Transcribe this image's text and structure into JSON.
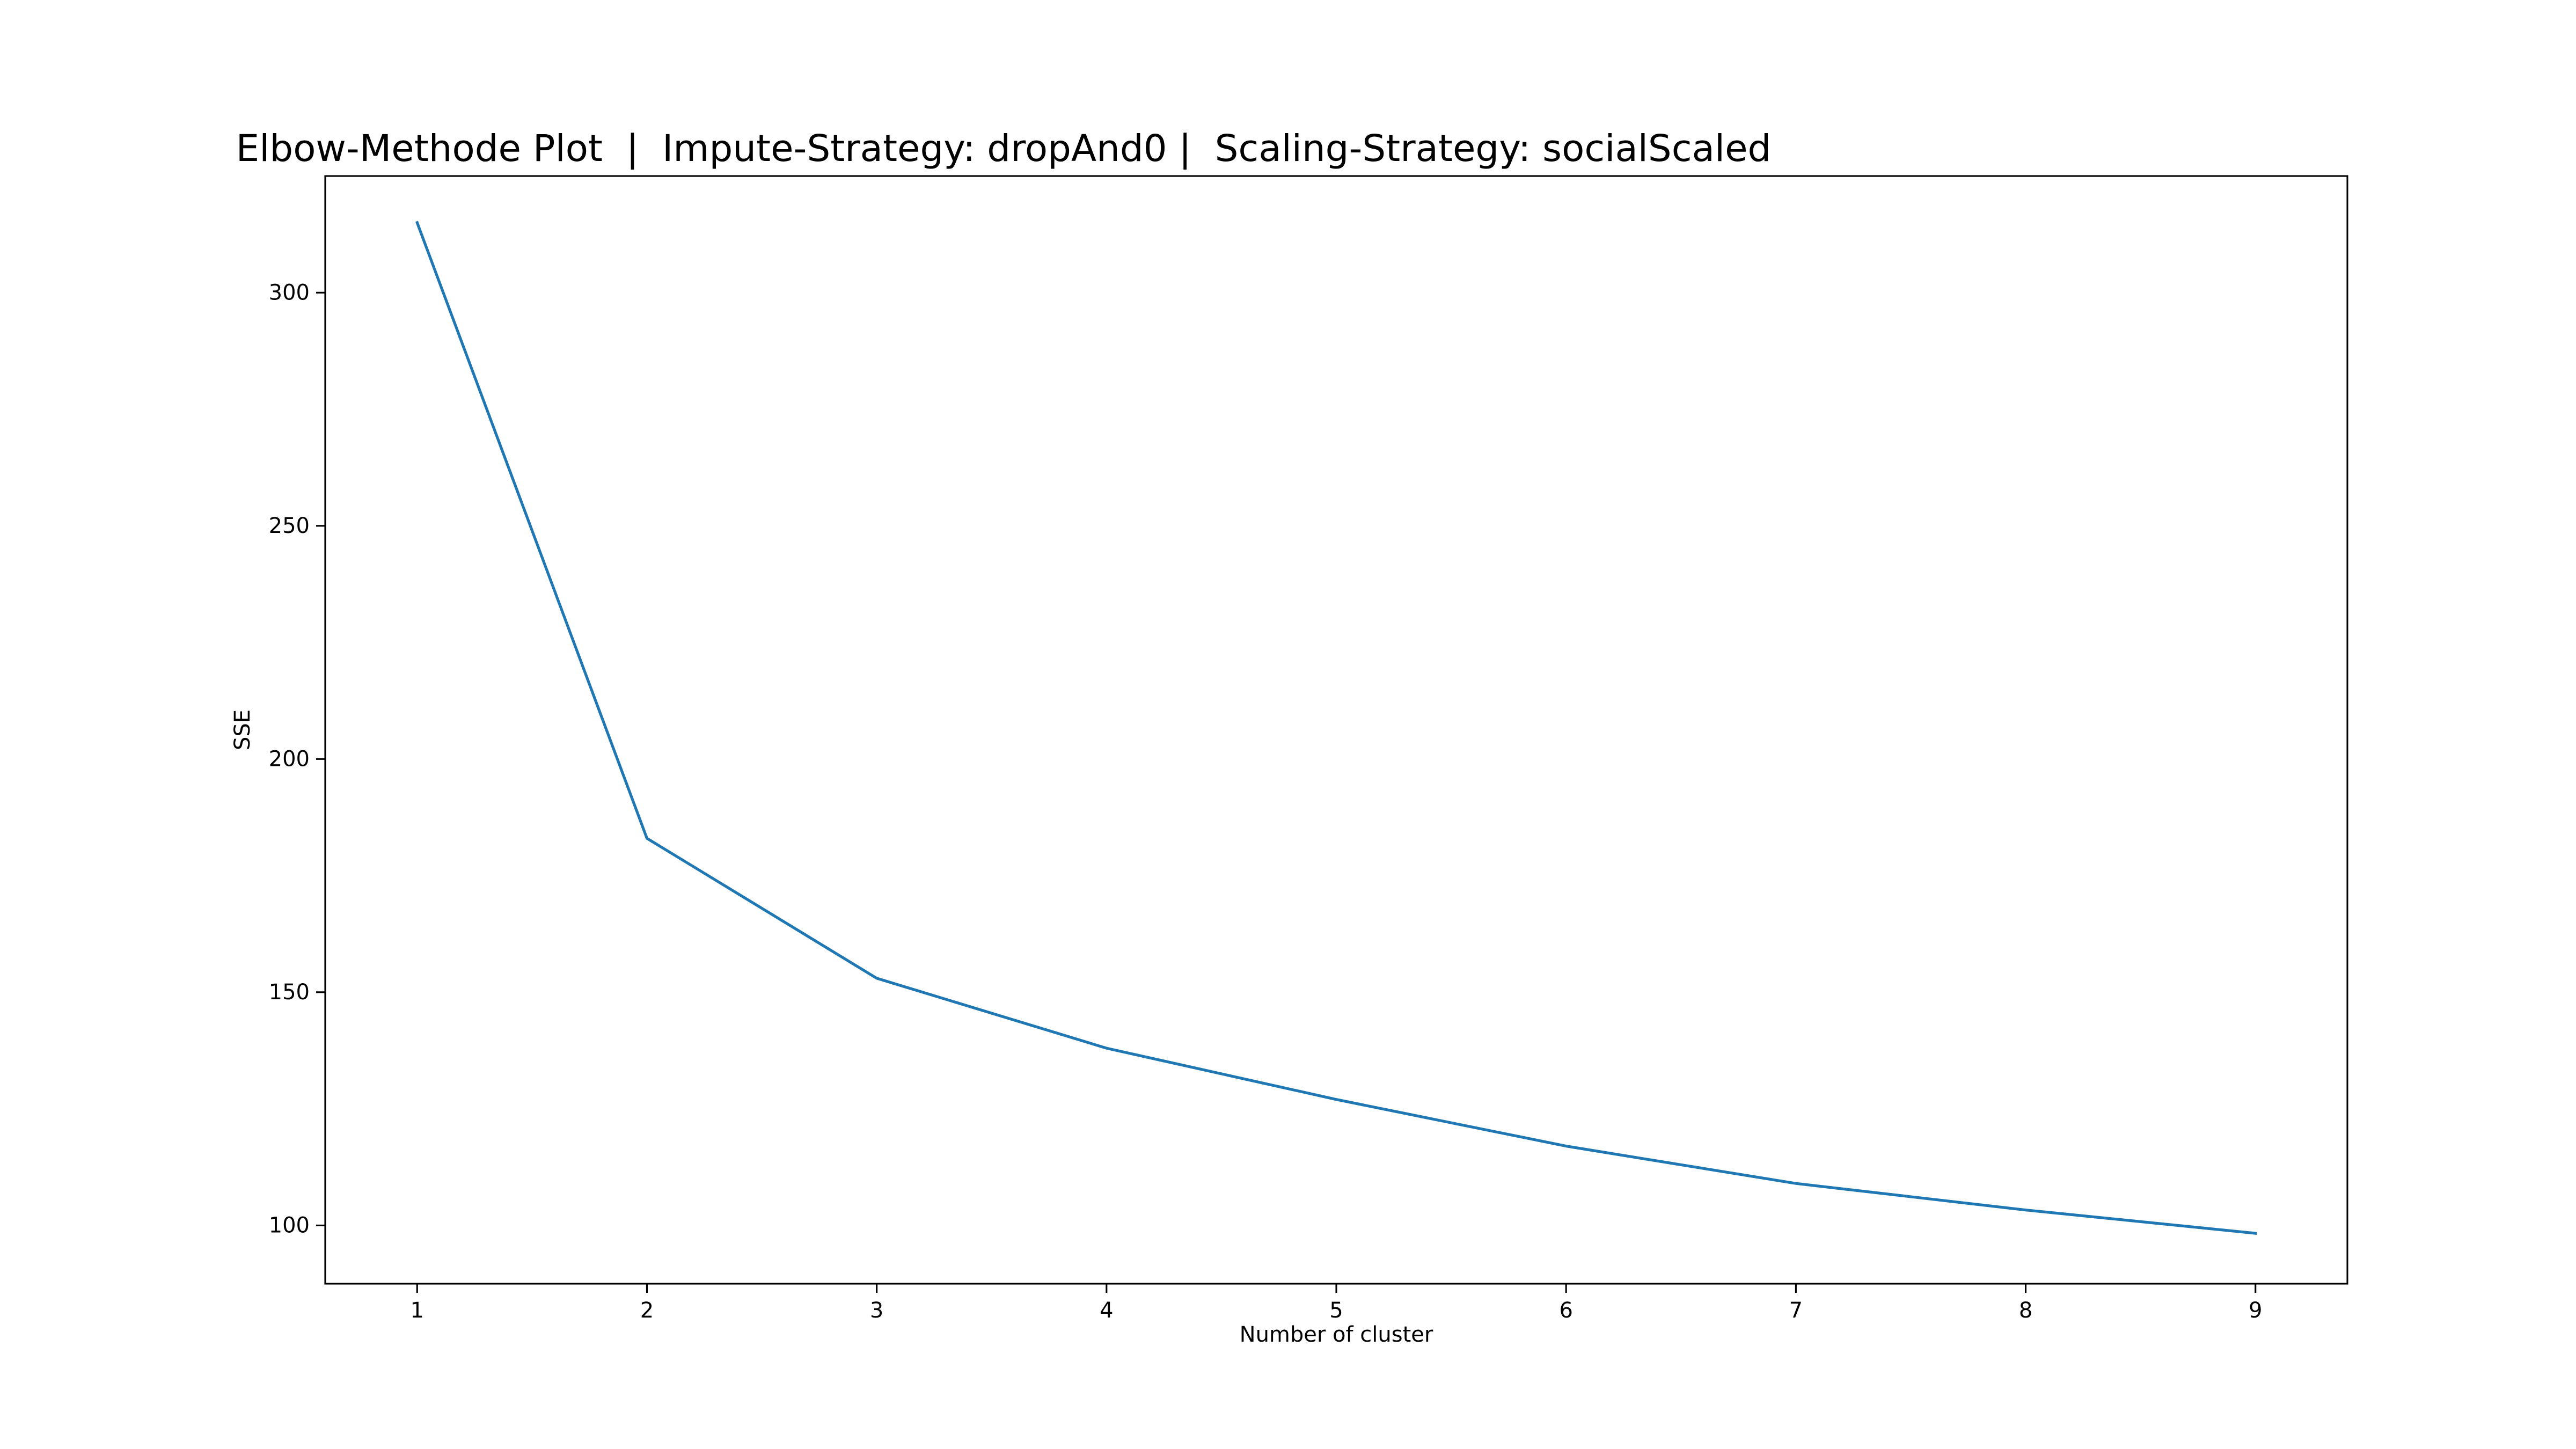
{
  "chart_data": {
    "type": "line",
    "title": "Elbow-Methode Plot  |  Impute-Strategy: dropAnd0 |  Scaling-Strategy: socialScaled",
    "xlabel": "Number of cluster",
    "ylabel": "SSE",
    "x": [
      1,
      2,
      3,
      4,
      5,
      6,
      7,
      8,
      9
    ],
    "series": [
      {
        "values": [
          315,
          183,
          153,
          138,
          127,
          117,
          109,
          103.3,
          98.3
        ],
        "color": "#1f77b4"
      }
    ],
    "xlim": [
      0.6,
      9.4
    ],
    "ylim": [
      87.5,
      325
    ],
    "xticks": [
      1,
      2,
      3,
      4,
      5,
      6,
      7,
      8,
      9
    ],
    "yticks": [
      100,
      150,
      200,
      250,
      300
    ],
    "grid": false,
    "legend": "none"
  }
}
